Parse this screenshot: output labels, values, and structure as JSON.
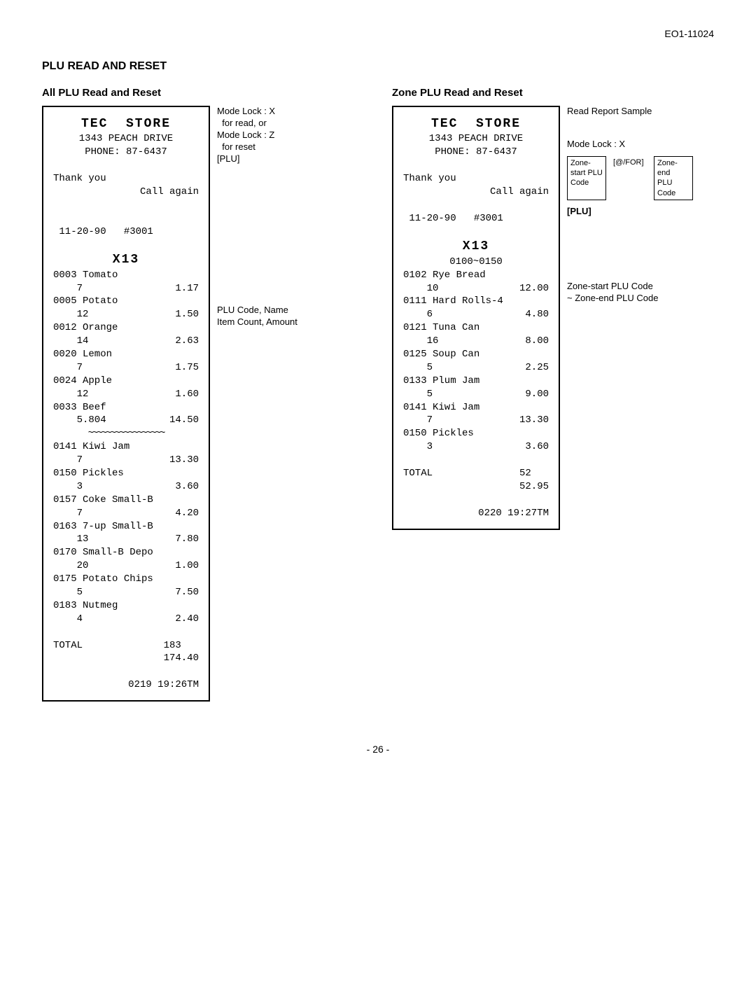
{
  "doc_id": "EO1-11024",
  "section_title": "PLU READ AND RESET",
  "left": {
    "title": "All PLU Read and Reset",
    "receipt": {
      "store": "TEC  STORE",
      "addr": "1343 PEACH DRIVE",
      "phone": "PHONE: 87-6437",
      "thank": "Thank you",
      "call": "Call again",
      "date": "11-20-90",
      "recno": "#3001",
      "x": "X13",
      "items_top": [
        {
          "code": "0003",
          "name": "Tomato",
          "cnt": "7",
          "amt": "1.17"
        },
        {
          "code": "0005",
          "name": "Potato",
          "cnt": "12",
          "amt": "1.50"
        },
        {
          "code": "0012",
          "name": "Orange",
          "cnt": "14",
          "amt": "2.63"
        },
        {
          "code": "0020",
          "name": "Lemon",
          "cnt": "7",
          "amt": "1.75"
        },
        {
          "code": "0024",
          "name": "Apple",
          "cnt": "12",
          "amt": "1.60"
        },
        {
          "code": "0033",
          "name": "Beef",
          "cnt": "5.804",
          "amt": "14.50"
        }
      ],
      "items_bottom": [
        {
          "code": "0141",
          "name": "Kiwi Jam",
          "cnt": "7",
          "amt": "13.30"
        },
        {
          "code": "0150",
          "name": "Pickles",
          "cnt": "3",
          "amt": "3.60"
        },
        {
          "code": "0157",
          "name": "Coke Small-B",
          "cnt": "7",
          "amt": "4.20"
        },
        {
          "code": "0163",
          "name": "7-up Small-B",
          "cnt": "13",
          "amt": "7.80"
        },
        {
          "code": "0170",
          "name": "Small-B Depo",
          "cnt": "20",
          "amt": "1.00"
        },
        {
          "code": "0175",
          "name": "Potato Chips",
          "cnt": "5",
          "amt": "7.50"
        },
        {
          "code": "0183",
          "name": "Nutmeg",
          "cnt": "4",
          "amt": "2.40"
        }
      ],
      "total_lbl": "TOTAL",
      "total_cnt": "183",
      "total_amt": "174.40",
      "footer": "0219 19:26TM"
    },
    "annot1": "Mode Lock : X\n  for read, or\nMode Lock : Z\n  for reset\n[PLU]",
    "annot2": "PLU Code, Name\nItem Count, Amount"
  },
  "right": {
    "title": "Zone PLU Read and Reset",
    "receipt": {
      "store": "TEC  STORE",
      "addr": "1343 PEACH DRIVE",
      "phone": "PHONE: 87-6437",
      "thank": "Thank you",
      "call": "Call again",
      "date": "11-20-90",
      "recno": "#3001",
      "x": "X13",
      "zone": "0100~0150",
      "items": [
        {
          "code": "0102",
          "name": "Rye Bread",
          "cnt": "10",
          "amt": "12.00"
        },
        {
          "code": "0111",
          "name": "Hard Rolls-4",
          "cnt": "6",
          "amt": "4.80"
        },
        {
          "code": "0121",
          "name": "Tuna Can",
          "cnt": "16",
          "amt": "8.00"
        },
        {
          "code": "0125",
          "name": "Soup Can",
          "cnt": "5",
          "amt": "2.25"
        },
        {
          "code": "0133",
          "name": "Plum Jam",
          "cnt": "5",
          "amt": "9.00"
        },
        {
          "code": "0141",
          "name": "Kiwi Jam",
          "cnt": "7",
          "amt": "13.30"
        },
        {
          "code": "0150",
          "name": "Pickles",
          "cnt": "3",
          "amt": "3.60"
        }
      ],
      "total_lbl": "TOTAL",
      "total_cnt": "52",
      "total_amt": "52.95",
      "footer": "0220 19:27TM"
    },
    "annot_top": "Read Report Sample",
    "annot_mode": "Mode Lock : X",
    "zbox1": "Zone-\nstart PLU\nCode",
    "zbox2": "[@/FOR]",
    "zbox3": "Zone-end\nPLU Code",
    "annot_plu": "[PLU]",
    "annot_zone": "Zone-start PLU Code\n~ Zone-end PLU Code"
  },
  "page_num": "- 26 -"
}
